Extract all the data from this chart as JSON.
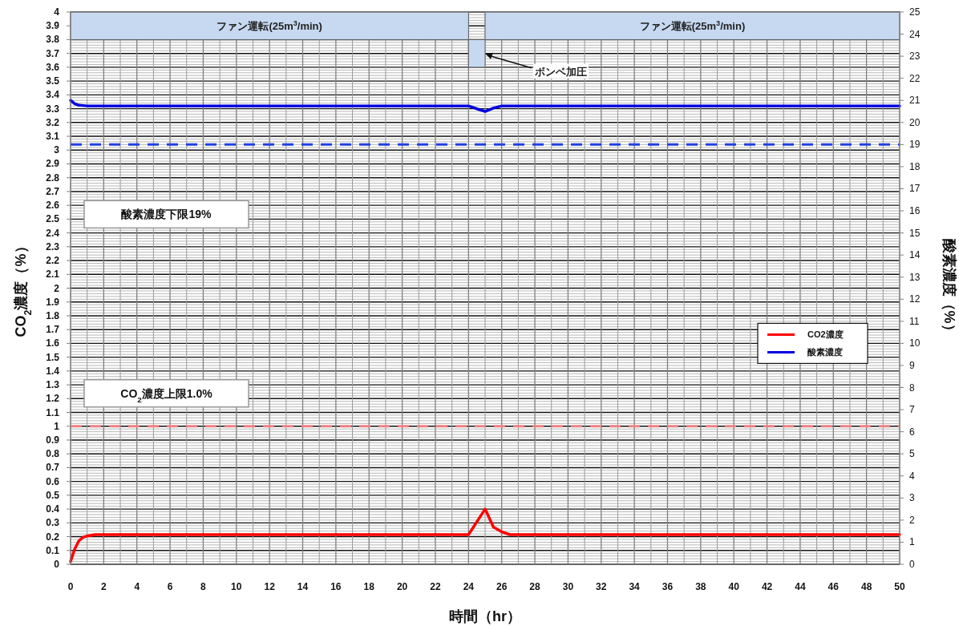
{
  "chart_data": {
    "type": "line",
    "xlabel": "時間（hr）",
    "ylabel": "CO$_{2}$濃度（%）",
    "y2label": "酸素濃度（%）",
    "xlim": [
      0,
      50
    ],
    "xticks": [
      0,
      2,
      4,
      6,
      8,
      10,
      12,
      14,
      16,
      18,
      20,
      22,
      24,
      26,
      28,
      30,
      32,
      34,
      36,
      38,
      40,
      42,
      44,
      46,
      48,
      50
    ],
    "ylim": [
      0,
      4
    ],
    "yticks": [
      0,
      0.1,
      0.2,
      0.3,
      0.4,
      0.5,
      0.6,
      0.7,
      0.8,
      0.9,
      1,
      1.1,
      1.2,
      1.3,
      1.4,
      1.5,
      1.6,
      1.7,
      1.8,
      1.9,
      2,
      2.1,
      2.2,
      2.3,
      2.4,
      2.5,
      2.6,
      2.7,
      2.8,
      2.9,
      3,
      3.1,
      3.2,
      3.3,
      3.4,
      3.5,
      3.6,
      3.7,
      3.8,
      3.9,
      4
    ],
    "y2lim": [
      0,
      25
    ],
    "y2ticks": [
      0,
      1,
      2,
      3,
      4,
      5,
      6,
      7,
      8,
      9,
      10,
      11,
      12,
      13,
      14,
      15,
      16,
      17,
      18,
      19,
      20,
      21,
      22,
      23,
      24,
      25
    ],
    "grid": true,
    "legend": "right",
    "marker": "none",
    "line_style": "solid",
    "series": [
      {
        "name": "CO2濃度",
        "color": "#ff0000",
        "x": [
          0,
          0.25,
          0.5,
          0.75,
          1,
          1.5,
          24,
          25,
          25.5,
          26,
          26.5,
          50
        ],
        "values": [
          0.02,
          0.11,
          0.17,
          0.195,
          0.205,
          0.215,
          0.215,
          0.4,
          0.27,
          0.235,
          0.215,
          0.215
        ]
      },
      {
        "name": "酸素濃度",
        "color": "#0000e0",
        "axis": "y2",
        "x": [
          0,
          0.25,
          0.5,
          1,
          24,
          24.5,
          25,
          25.5,
          26,
          50
        ],
        "values": [
          21.0,
          20.85,
          20.78,
          20.75,
          20.75,
          20.62,
          20.5,
          20.65,
          20.75,
          20.75
        ]
      }
    ],
    "ref_lines": [
      {
        "axis": "y2",
        "value": 19,
        "color": "#2040e0",
        "line_style": "dashed"
      },
      {
        "axis": "y",
        "value": 1,
        "color": "#f08080",
        "line_style": "dashed"
      }
    ],
    "annotations": [
      "酸素濃度下限19%",
      "CO$_{2}$濃度上限1.0%",
      {
        "text": "ボンベ加圧",
        "x": 25,
        "y": 3.7
      }
    ],
    "bands": [
      {
        "axis": "x",
        "from": 0,
        "to": 24,
        "label": "ファン運転(25m$^{3}$/min)",
        "color": "#c6d9f0"
      },
      {
        "axis": "x",
        "from": 24,
        "to": 25,
        "color": "#c6d9f0"
      },
      {
        "axis": "x",
        "from": 25,
        "to": 50,
        "label": "ファン運転(25m$^{3}$/min)",
        "color": "#c6d9f0"
      }
    ]
  }
}
